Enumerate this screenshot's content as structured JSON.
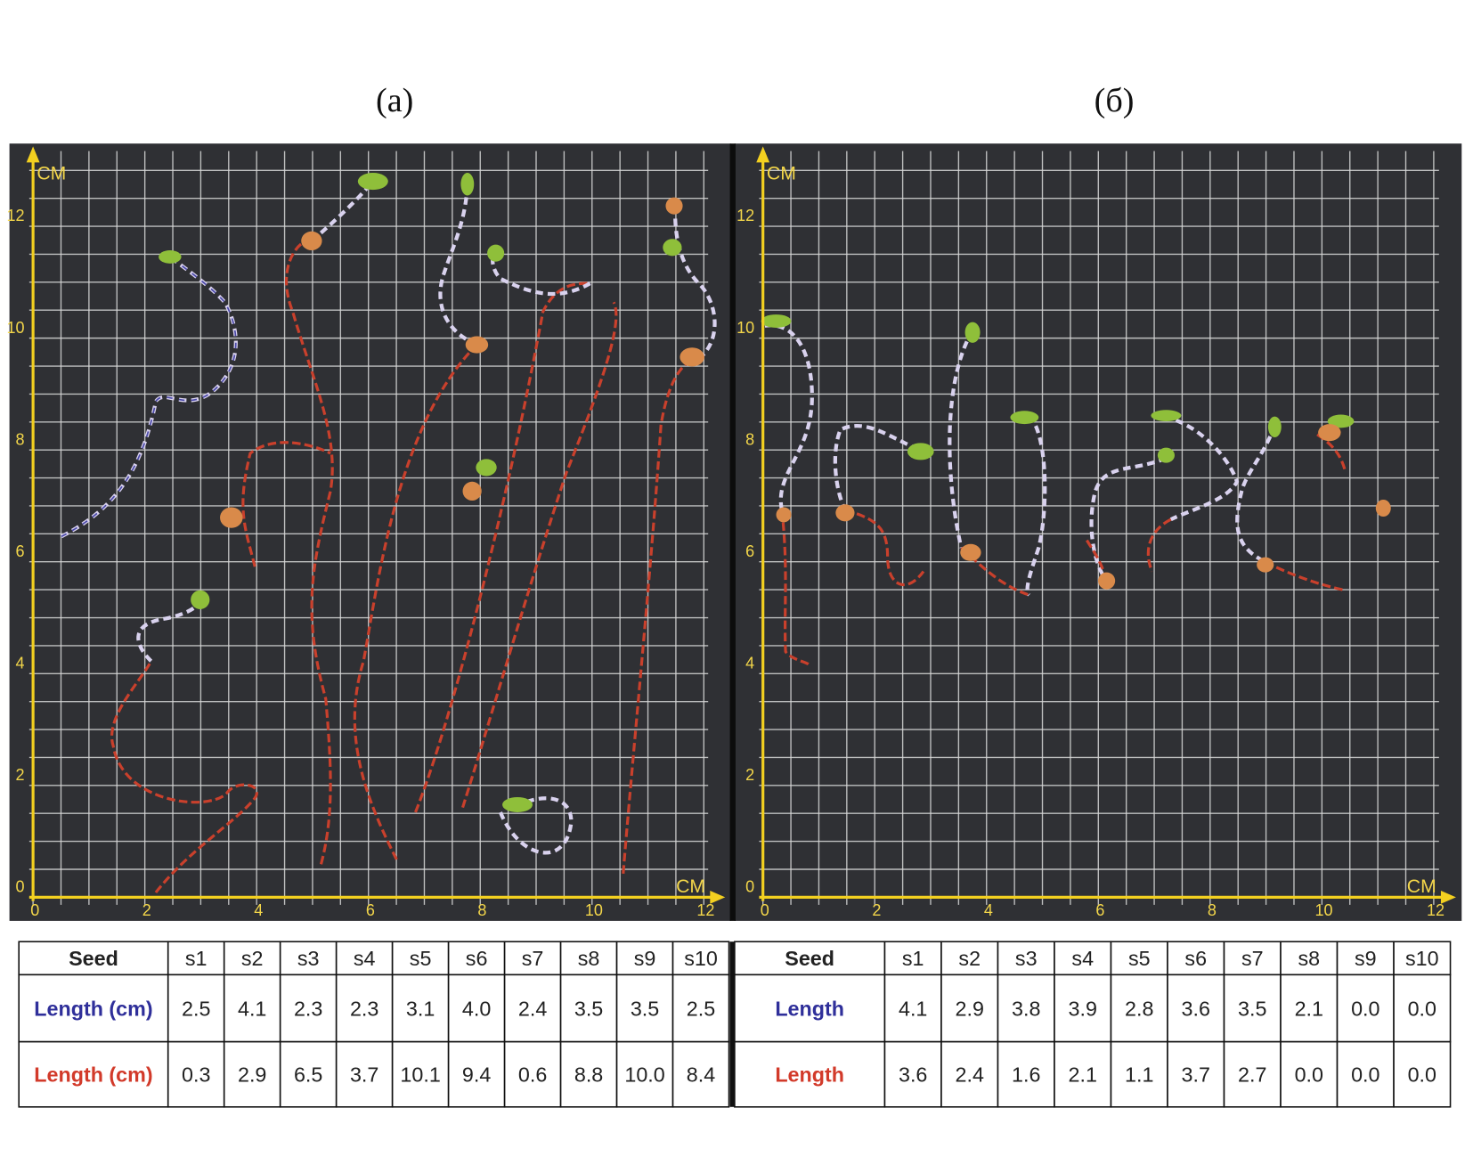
{
  "panels": [
    {
      "label": "(a)",
      "x_unit": "CM",
      "y_unit": "CM",
      "xticks": [
        0,
        2,
        4,
        6,
        8,
        10,
        12
      ],
      "yticks": [
        0,
        2,
        4,
        6,
        8,
        10,
        12
      ]
    },
    {
      "label": "(б)",
      "x_unit": "CM",
      "y_unit": "CM",
      "xticks": [
        0,
        2,
        4,
        6,
        8,
        10,
        12
      ],
      "yticks": [
        0,
        2,
        4,
        6,
        8,
        10,
        12
      ]
    }
  ],
  "tables": [
    {
      "header": [
        "Seed",
        "s1",
        "s2",
        "s3",
        "s4",
        "s5",
        "s6",
        "s7",
        "s8",
        "s9",
        "s10"
      ],
      "rows": [
        [
          "Length (cm)",
          "2.5",
          "4.1",
          "2.3",
          "2.3",
          "3.1",
          "4.0",
          "2.4",
          "3.5",
          "3.5",
          "2.5"
        ],
        [
          "Length (cm)",
          "0.3",
          "2.9",
          "6.5",
          "3.7",
          "10.1",
          "9.4",
          "0.6",
          "8.8",
          "10.0",
          "8.4"
        ]
      ]
    },
    {
      "header": [
        "Seed",
        "s1",
        "s2",
        "s3",
        "s4",
        "s5",
        "s6",
        "s7",
        "s8",
        "s9",
        "s10"
      ],
      "rows": [
        [
          "Length",
          "4.1",
          "2.9",
          "3.8",
          "3.9",
          "2.8",
          "3.6",
          "3.5",
          "2.1",
          "0.0",
          "0.0"
        ],
        [
          "Length",
          "3.6",
          "2.4",
          "1.6",
          "2.1",
          "1.1",
          "3.7",
          "2.7",
          "0.0",
          "0.0",
          "0.0"
        ]
      ]
    }
  ]
}
